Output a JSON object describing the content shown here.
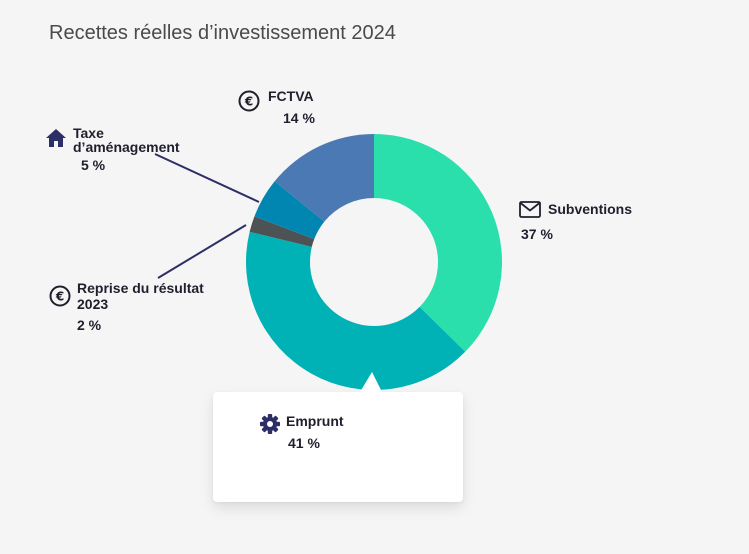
{
  "title": "Recettes réelles d’investissement 2024",
  "chart_data": {
    "type": "pie",
    "title": "Recettes réelles d’investissement 2024",
    "slices": [
      {
        "name": "Subventions",
        "value": 37,
        "display": "37 %",
        "color": "#2bdfad",
        "icon": "mail-icon"
      },
      {
        "name": "Emprunt",
        "value": 41,
        "display": "41 %",
        "color": "#00b2b6",
        "icon": "gear-icon"
      },
      {
        "name": "Reprise du résultat 2023",
        "value": 2,
        "display": "2 %",
        "color": "#4d5355",
        "icon": "euro-icon"
      },
      {
        "name": "Taxe d’aménagement",
        "value": 5,
        "display": "5 %",
        "color": "#0086b0",
        "icon": "house-icon"
      },
      {
        "name": "FCTVA",
        "value": 14,
        "display": "14 %",
        "color": "#4a79b3",
        "icon": "euro-icon"
      }
    ]
  },
  "labels": {
    "subventions": {
      "name": "Subventions",
      "pct": "37 %"
    },
    "emprunt": {
      "name": "Emprunt",
      "pct": "41 %"
    },
    "reprise": {
      "line1": "Reprise du résultat",
      "line2": "2023",
      "pct": "2 %"
    },
    "taxe": {
      "line1": "Taxe",
      "line2": "d’aménagement",
      "pct": "5 %"
    },
    "fctva": {
      "name": "FCTVA",
      "pct": "14 %"
    }
  },
  "colors": {
    "leader_line": "#2c2f66",
    "icon": "#2c2f66"
  }
}
